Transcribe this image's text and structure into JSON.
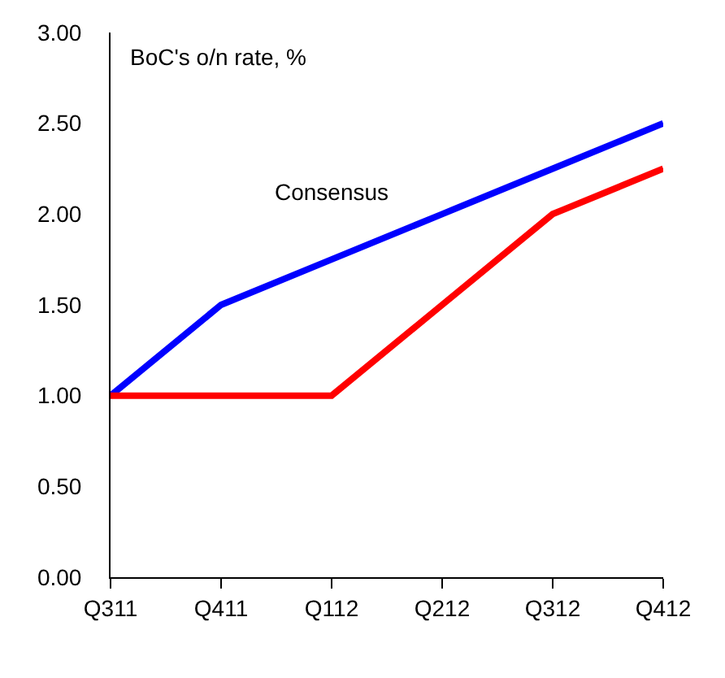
{
  "chart_data": {
    "type": "line",
    "ylabel": "BoC's o/n rate, %",
    "categories": [
      "Q311",
      "Q411",
      "Q112",
      "Q212",
      "Q312",
      "Q412"
    ],
    "series": [
      {
        "name": "Consensus",
        "color": "#0000ff",
        "values": [
          1,
          1.5,
          1.75,
          2,
          2.25,
          2.5
        ]
      },
      {
        "color": "#ff0000",
        "values": [
          1,
          1,
          1,
          1.5,
          2,
          2.25
        ]
      }
    ],
    "ylim": [
      0,
      3
    ],
    "yticks": [
      {
        "value": 0,
        "label": "0.00"
      },
      {
        "value": 0.5,
        "label": "0.50"
      },
      {
        "value": 1,
        "label": "1.00"
      },
      {
        "value": 1.5,
        "label": "1.50"
      },
      {
        "value": 2,
        "label": "2.00"
      },
      {
        "value": 2.5,
        "label": "2.50"
      },
      {
        "value": 3,
        "label": "3.00"
      }
    ],
    "grid": false,
    "legend": false
  }
}
